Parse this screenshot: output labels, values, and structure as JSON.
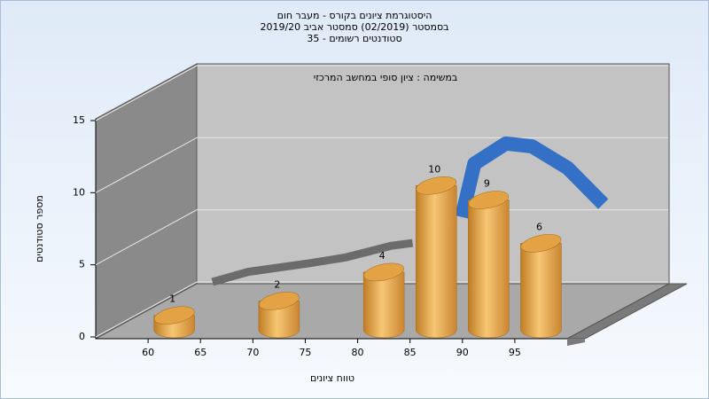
{
  "chart_data": {
    "type": "histogram",
    "title": [
      "היסטוגרמת ציונים בקורס - מעבר חום",
      "בסמסטר (02/2019) סמסטר אביב 2019/20",
      "סטודנטים רשומים - 35"
    ],
    "subtitle": "במשימה : ציון סופי במחשב המרכזי",
    "ylabel": "מספר סטודנטים",
    "xlabel": "טווח ציונים",
    "bins": [
      60,
      65,
      70,
      75,
      80,
      85,
      90,
      95,
      100
    ],
    "values": [
      1,
      0,
      2,
      0,
      4,
      10,
      9,
      6
    ],
    "color": "#e3a243",
    "xlim": [
      55,
      100
    ],
    "xticks": [
      60,
      65,
      70,
      75,
      80,
      85,
      90,
      95
    ],
    "ylim": [
      0,
      15
    ],
    "yticks": [
      0,
      5,
      10,
      15
    ],
    "grid": true,
    "fit_curve": [
      {
        "color": "#6b6b6b",
        "x": [
          56.5,
          59.9,
          65.8,
          69.2,
          73.5,
          75.6
        ],
        "values": [
          0,
          0.7,
          1.3,
          1.7,
          2.5,
          2.7
        ]
      },
      {
        "color": "#3470c6",
        "x": [
          80.3,
          81.5,
          84.5,
          87.0,
          90.4,
          93.8
        ],
        "values": [
          4.5,
          8.2,
          9.6,
          9.4,
          7.9,
          5.4
        ]
      }
    ]
  }
}
